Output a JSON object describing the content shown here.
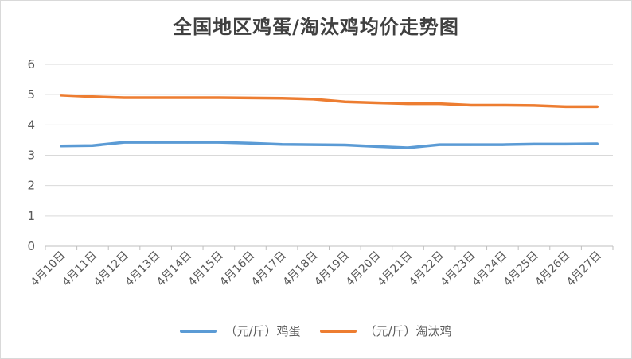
{
  "chart_data": {
    "type": "line",
    "title": "全国地区鸡蛋/淘汰鸡均价走势图",
    "categories": [
      "4月10日",
      "4月11日",
      "4月12日",
      "4月13日",
      "4月14日",
      "4月15日",
      "4月16日",
      "4月17日",
      "4月18日",
      "4月19日",
      "4月20日",
      "4月21日",
      "4月22日",
      "4月23日",
      "4月24日",
      "4月25日",
      "4月26日",
      "4月27日"
    ],
    "series": [
      {
        "name": "（元/斤）鸡蛋",
        "color": "#5b9bd5",
        "values": [
          3.31,
          3.32,
          3.43,
          3.43,
          3.43,
          3.43,
          3.4,
          3.36,
          3.35,
          3.34,
          3.29,
          3.25,
          3.35,
          3.35,
          3.35,
          3.37,
          3.37,
          3.38
        ]
      },
      {
        "name": "（元/斤）淘汰鸡",
        "color": "#ed7d31",
        "values": [
          4.98,
          4.93,
          4.9,
          4.9,
          4.9,
          4.9,
          4.89,
          4.88,
          4.85,
          4.76,
          4.73,
          4.7,
          4.7,
          4.65,
          4.65,
          4.64,
          4.6,
          4.6
        ]
      }
    ],
    "ylim": [
      0,
      6
    ],
    "yticks": [
      "0",
      "1",
      "2",
      "3",
      "4",
      "5",
      "6"
    ],
    "grid": true,
    "legend_position": "bottom"
  }
}
